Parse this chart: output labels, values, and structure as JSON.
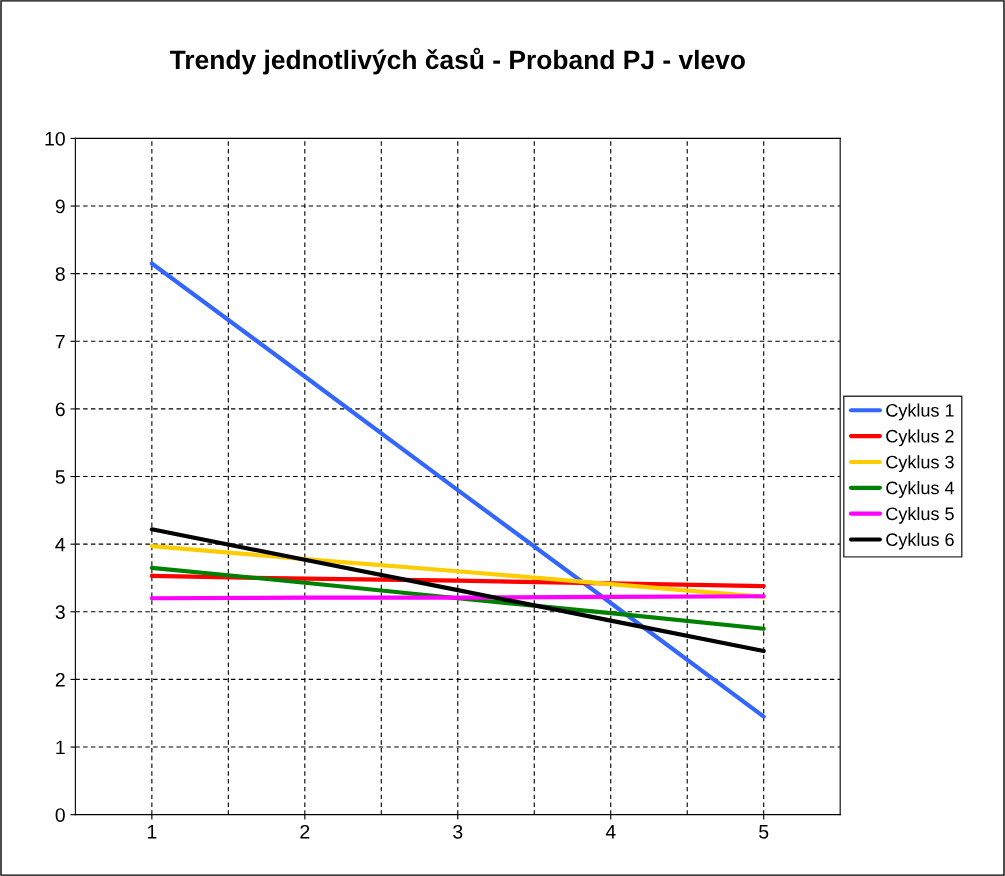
{
  "chart_data": {
    "type": "line",
    "title": "Trendy jednotlivých časů - Proband PJ - vlevo",
    "categories": [
      "1",
      "2",
      "3",
      "4",
      "5"
    ],
    "series": [
      {
        "name": "Cyklus 1",
        "color": "#3366ff",
        "values": [
          8.15,
          6.48,
          4.8,
          3.13,
          1.45
        ]
      },
      {
        "name": "Cyklus 2",
        "color": "#ff0000",
        "values": [
          3.53,
          3.49,
          3.46,
          3.42,
          3.38
        ]
      },
      {
        "name": "Cyklus 3",
        "color": "#ffcc00",
        "values": [
          3.97,
          3.78,
          3.6,
          3.41,
          3.22
        ]
      },
      {
        "name": "Cyklus 4",
        "color": "#008000",
        "values": [
          3.65,
          3.43,
          3.2,
          2.98,
          2.75
        ]
      },
      {
        "name": "Cyklus 5",
        "color": "#ff00ff",
        "values": [
          3.2,
          3.21,
          3.21,
          3.22,
          3.23
        ]
      },
      {
        "name": "Cyklus 6",
        "color": "#000000",
        "values": [
          4.22,
          3.77,
          3.32,
          2.87,
          2.42
        ]
      }
    ],
    "ylim": [
      0,
      10
    ],
    "yticks": [
      0,
      1,
      2,
      3,
      4,
      5,
      6,
      7,
      8,
      9,
      10
    ],
    "grid": true,
    "legend": "right",
    "marker": "none",
    "line_style": "solid"
  }
}
